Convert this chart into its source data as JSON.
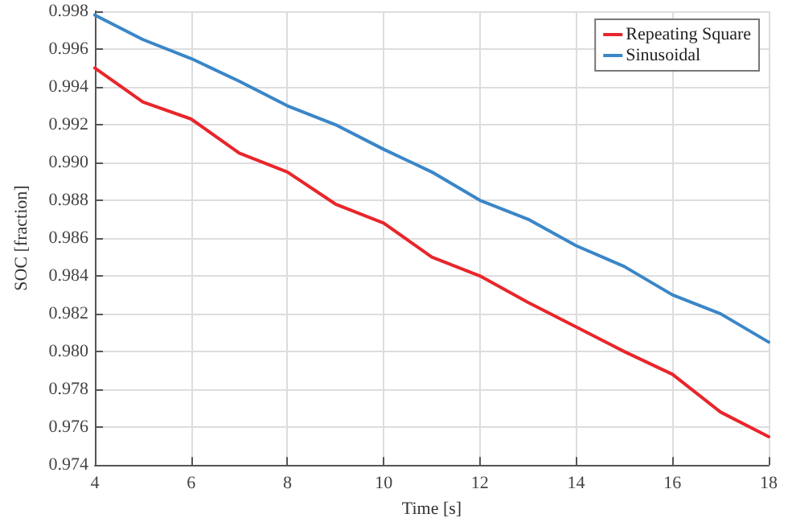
{
  "chart_data": {
    "type": "line",
    "xlabel": "Time [s]",
    "ylabel": "SOC [fraction]",
    "x": [
      4,
      5,
      6,
      7,
      8,
      9,
      10,
      11,
      12,
      13,
      14,
      15,
      16,
      17,
      18
    ],
    "series": [
      {
        "name": "Repeating Square",
        "color": "#e8262b",
        "values": [
          0.995,
          0.9932,
          0.9923,
          0.9905,
          0.9895,
          0.9878,
          0.9868,
          0.985,
          0.984,
          0.9826,
          0.9813,
          0.98,
          0.9788,
          0.9768,
          0.9755
        ]
      },
      {
        "name": "Sinusoidal",
        "color": "#3a86c8",
        "values": [
          0.9978,
          0.9965,
          0.9955,
          0.9943,
          0.993,
          0.992,
          0.9907,
          0.9895,
          0.988,
          0.987,
          0.9856,
          0.9845,
          0.983,
          0.982,
          0.9805
        ]
      }
    ],
    "xlim": [
      4,
      18
    ],
    "xticks": [
      4,
      6,
      8,
      10,
      12,
      14,
      16,
      18
    ],
    "ylim": [
      0.974,
      0.998
    ],
    "yticks": [
      0.974,
      0.976,
      0.978,
      {
        "value": 0.98,
        "label": "0.980"
      },
      0.982,
      0.984,
      0.986,
      0.988,
      {
        "value": 0.99,
        "label": "0.990"
      },
      0.992,
      0.994,
      0.996,
      0.998
    ],
    "grid": true,
    "legend": "top right",
    "marker": "none",
    "line_style": "solid"
  }
}
